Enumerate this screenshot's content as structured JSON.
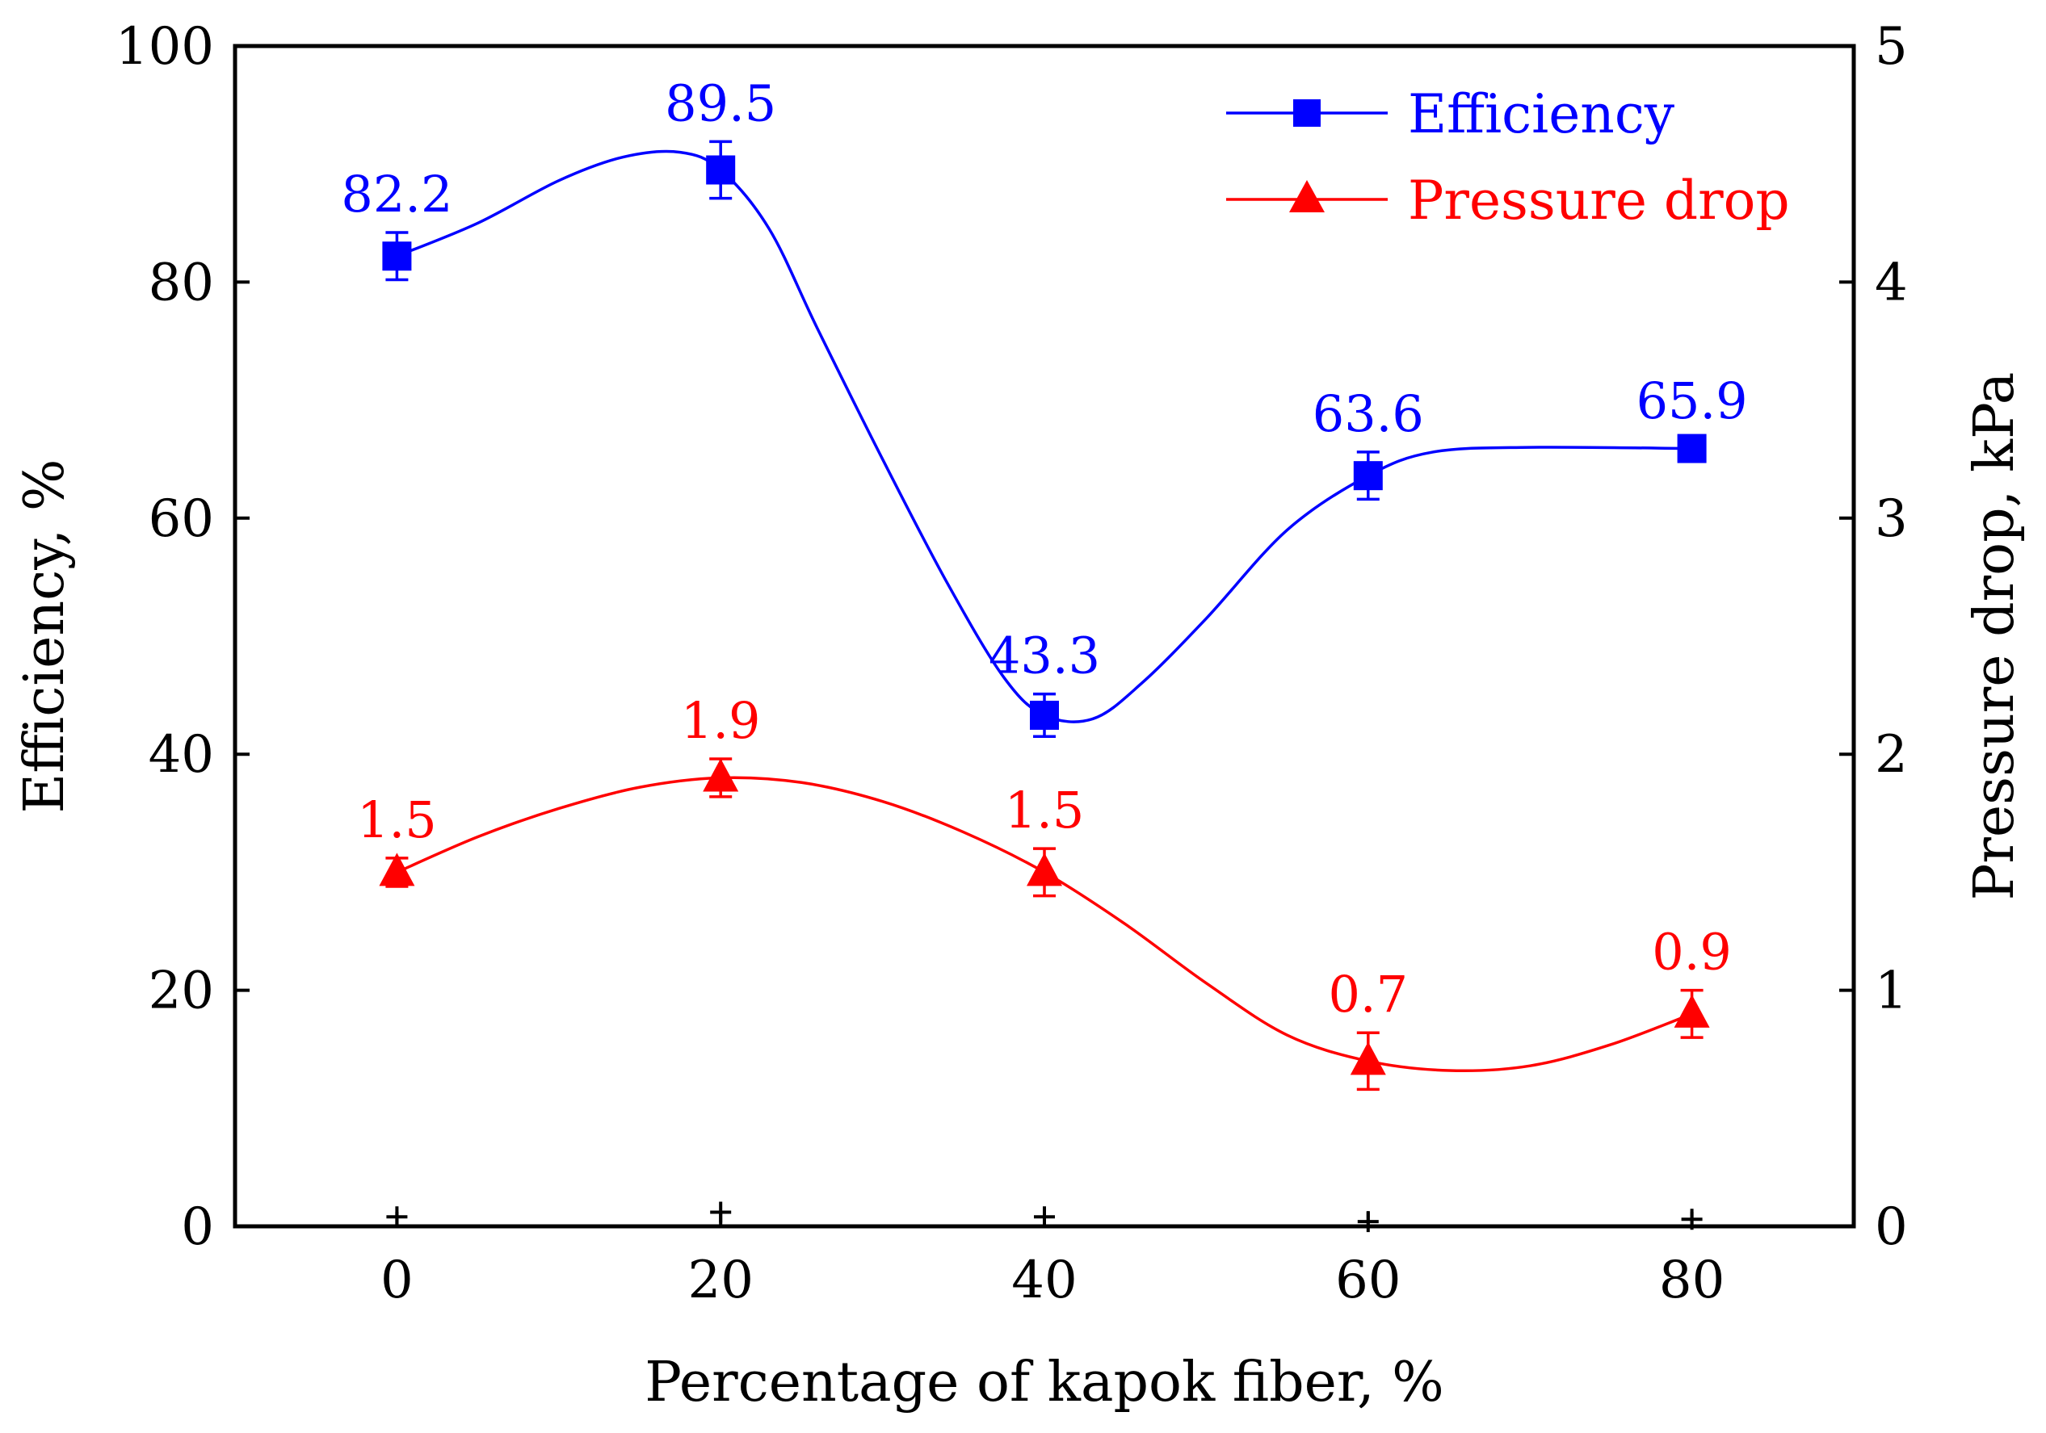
{
  "chart_data": {
    "type": "line",
    "xlabel": "Percentage of kapok fiber, %",
    "ylabel_left": "Efficiency, %",
    "ylabel_right": "Pressure drop, kPa",
    "xlim": [
      -10,
      90
    ],
    "ylim_left": [
      0,
      100
    ],
    "ylim_right": [
      0,
      5
    ],
    "x_ticks": [
      0,
      20,
      40,
      60,
      80
    ],
    "y_ticks_left": [
      0,
      20,
      40,
      60,
      80,
      100
    ],
    "y_ticks_right": [
      0,
      1,
      2,
      3,
      4,
      5
    ],
    "grid": false,
    "legend_position": "top-right",
    "series": [
      {
        "name": "Efficiency",
        "axis": "left",
        "color": "#0000ff",
        "marker": "square",
        "x": [
          0,
          20,
          40,
          60,
          80
        ],
        "y": [
          82.2,
          89.5,
          43.3,
          63.6,
          65.9
        ],
        "error": [
          2.0,
          2.4,
          1.8,
          2.0,
          0.8
        ],
        "labels": [
          "82.2",
          "89.5",
          "43.3",
          "63.6",
          "65.9"
        ],
        "smooth_curve": [
          [
            0,
            82.2
          ],
          [
            5,
            85.0
          ],
          [
            10,
            88.6
          ],
          [
            14,
            90.6
          ],
          [
            17.5,
            91.0
          ],
          [
            20,
            89.5
          ],
          [
            23,
            84.5
          ],
          [
            26,
            76.0
          ],
          [
            30,
            65.0
          ],
          [
            34,
            54.5
          ],
          [
            37.5,
            46.5
          ],
          [
            40,
            43.3
          ],
          [
            43,
            43.0
          ],
          [
            46,
            46.0
          ],
          [
            50,
            51.5
          ],
          [
            55,
            59.0
          ],
          [
            60,
            63.6
          ],
          [
            64,
            65.6
          ],
          [
            70,
            66.0
          ],
          [
            80,
            65.9
          ]
        ]
      },
      {
        "name": "Pressure drop",
        "axis": "right",
        "color": "#ff0000",
        "marker": "triangle",
        "x": [
          0,
          20,
          40,
          60,
          80
        ],
        "y": [
          1.5,
          1.9,
          1.5,
          0.7,
          0.9
        ],
        "error": [
          0.06,
          0.08,
          0.1,
          0.12,
          0.1
        ],
        "labels": [
          "1.5",
          "1.9",
          "1.5",
          "0.7",
          "0.9"
        ],
        "smooth_curve": [
          [
            0,
            1.5
          ],
          [
            5,
            1.65
          ],
          [
            10,
            1.77
          ],
          [
            15,
            1.86
          ],
          [
            20,
            1.9
          ],
          [
            25,
            1.88
          ],
          [
            30,
            1.8
          ],
          [
            35,
            1.67
          ],
          [
            40,
            1.5
          ],
          [
            45,
            1.28
          ],
          [
            50,
            1.03
          ],
          [
            55,
            0.81
          ],
          [
            60,
            0.7
          ],
          [
            65,
            0.66
          ],
          [
            70,
            0.68
          ],
          [
            75,
            0.77
          ],
          [
            80,
            0.9
          ]
        ]
      }
    ],
    "zero_markers": {
      "x": [
        0,
        20,
        40,
        60,
        80
      ],
      "y_left": [
        0.8,
        1.2,
        0.8,
        0.4,
        0.6
      ]
    }
  }
}
